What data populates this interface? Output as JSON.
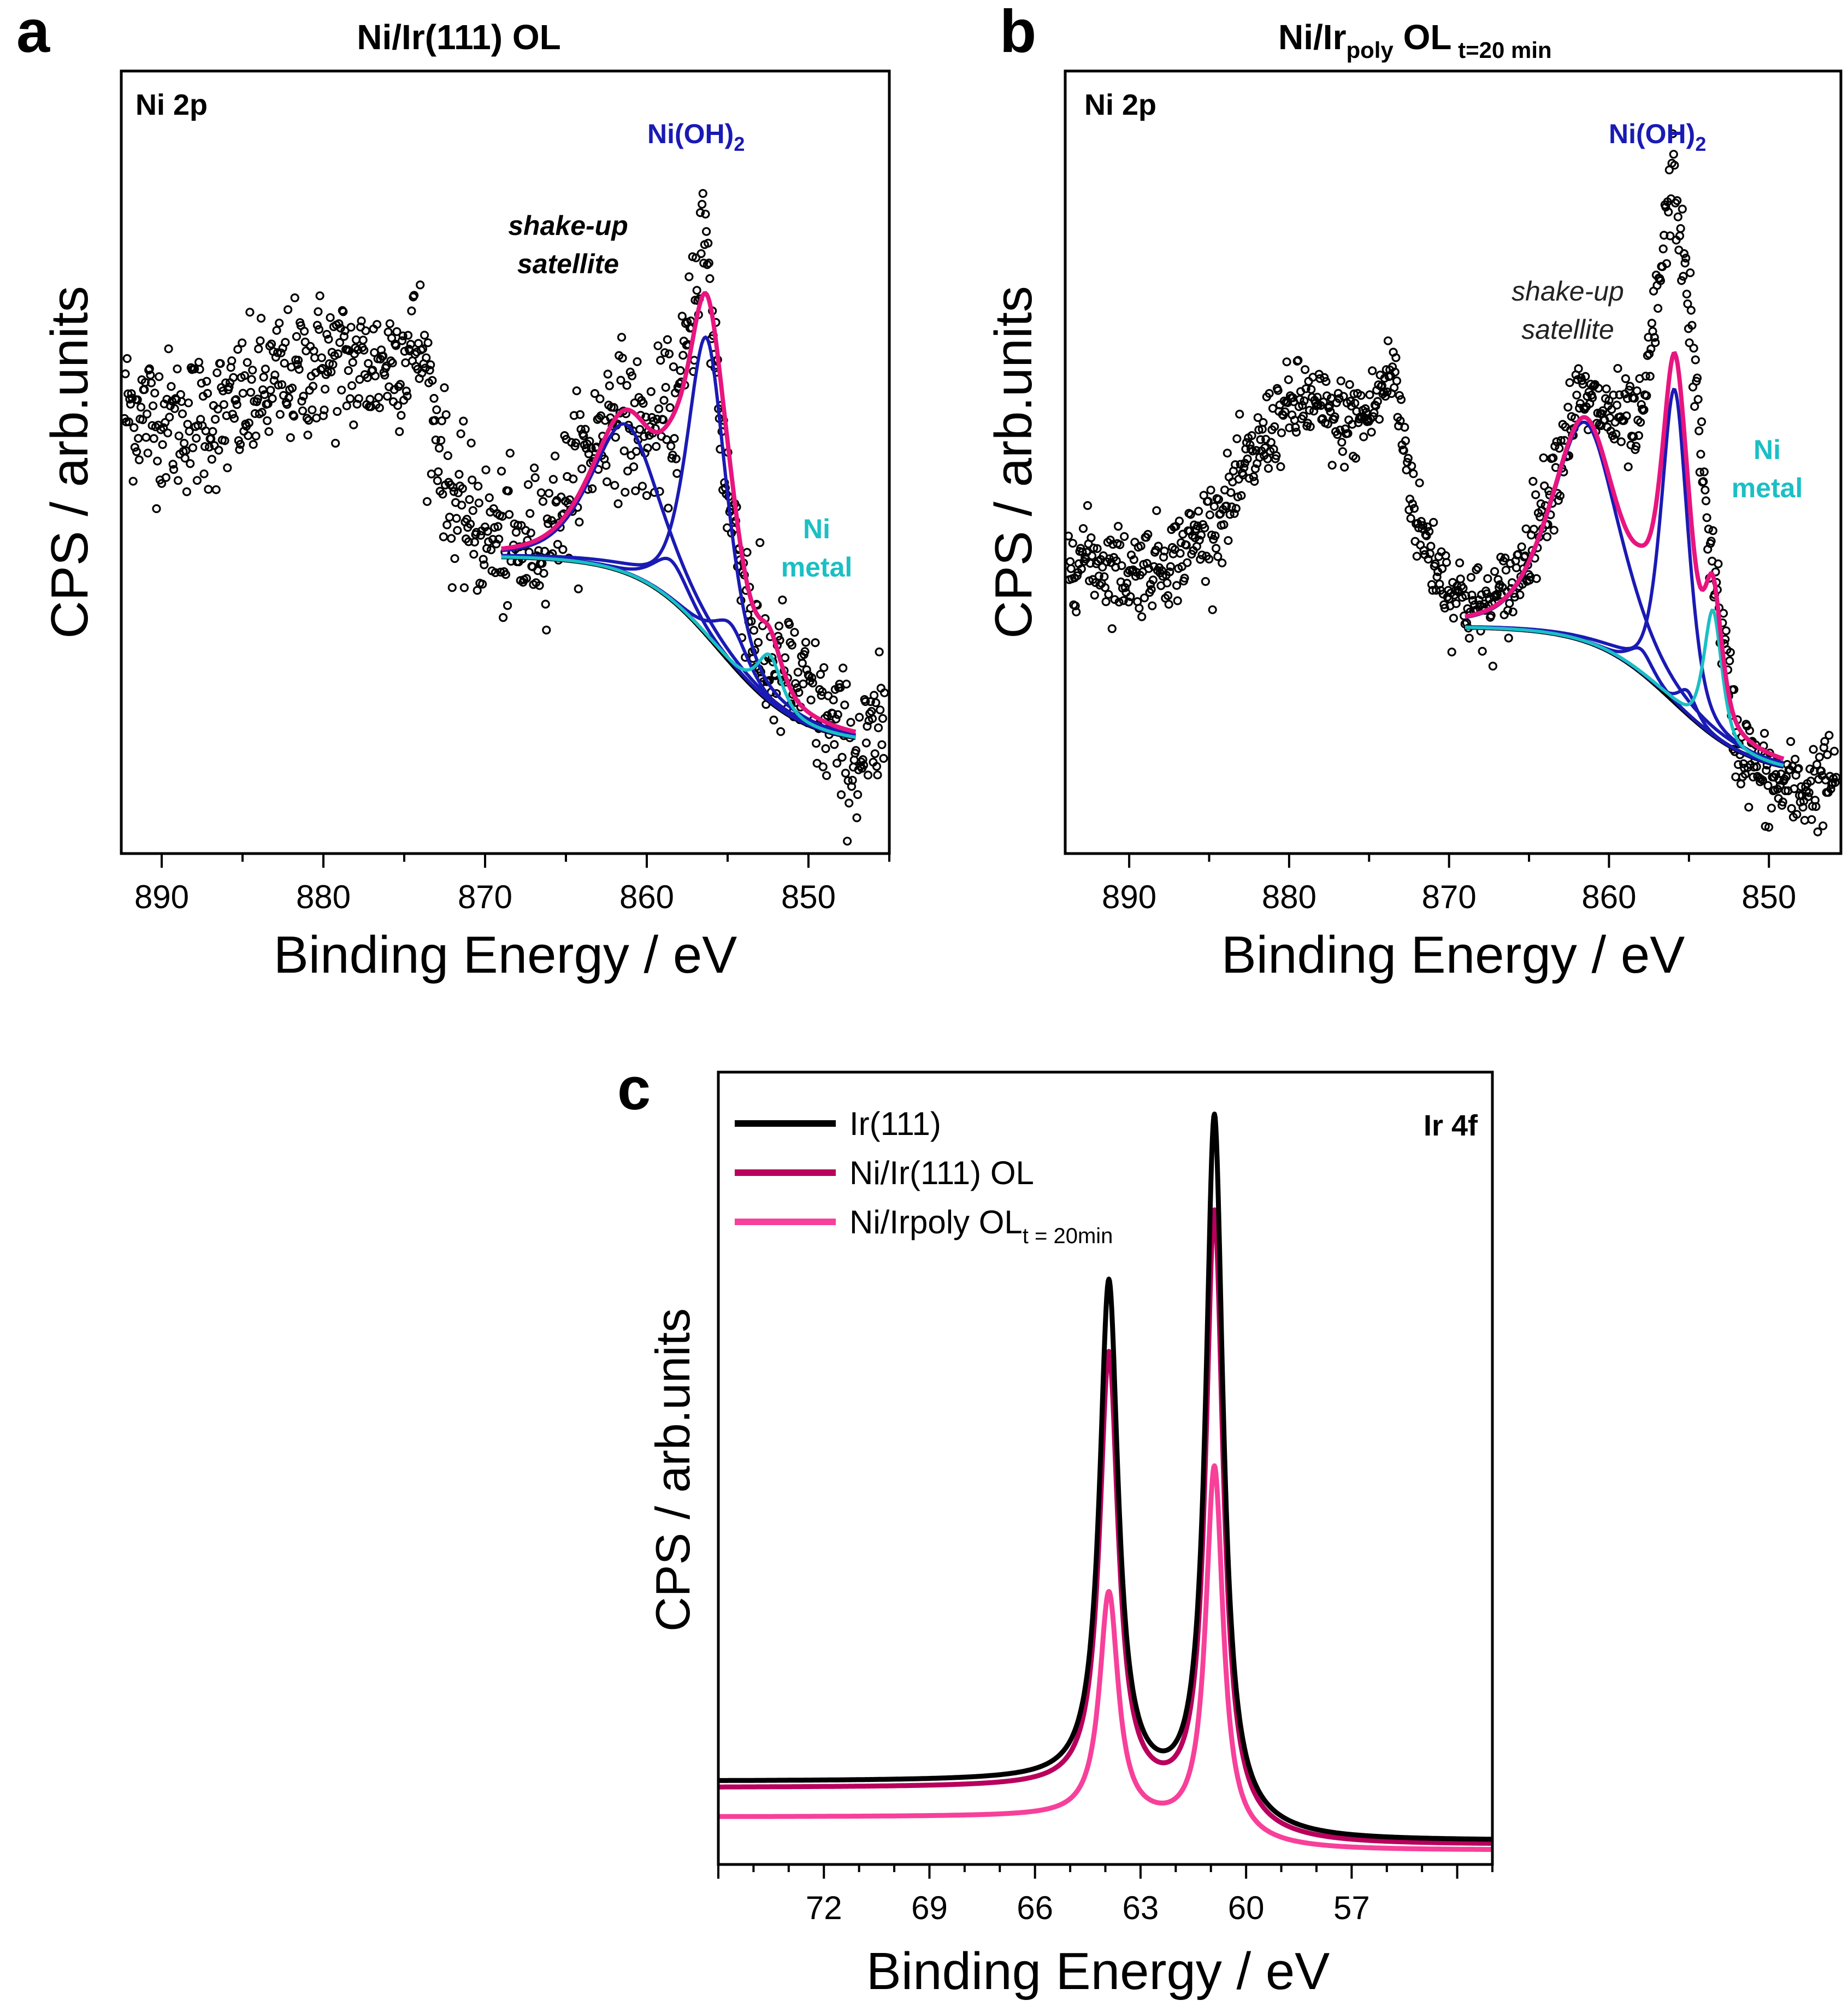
{
  "colors": {
    "data_points": "#000000",
    "background_curve": "#000000",
    "nioh2_component": "#1a1ab4",
    "ni_metal_component": "#1bbfc4",
    "envelope": "#e8157f",
    "ir111": "#000000",
    "ni_ir111": "#b8005c",
    "ni_irpoly": "#f7409a"
  },
  "chart_data": [
    {
      "panel": "a",
      "type": "scatter",
      "title": "Ni/Ir(111) OL",
      "region_label": "Ni 2p",
      "xlabel": "Binding Energy / eV",
      "ylabel": "CPS / arb.units",
      "xlim": [
        892.5,
        845.0
      ],
      "ylim": [
        0.0,
        1.0
      ],
      "xticks": [
        890,
        880,
        870,
        860,
        850
      ],
      "xtick_labels": [
        "890",
        "880",
        "870",
        "860",
        "850"
      ],
      "annotations": {
        "satellite_line1": "shake-up",
        "satellite_line2": "satellite",
        "nioh2_main": "Ni(OH)",
        "nioh2_sub": "2",
        "ni_metal_line1": "Ni",
        "ni_metal_line2": "metal"
      },
      "fit_range": [
        869,
        847
      ],
      "background": {
        "start_level": 0.38,
        "end_level": 0.14,
        "step_center": 855.5
      },
      "components": [
        {
          "name": "Ni(OH)2 main",
          "center": 856.3,
          "height": 0.38,
          "width": 1.3
        },
        {
          "name": "Ni(OH)2 satellite",
          "center": 861.3,
          "height": 0.19,
          "width": 2.3
        },
        {
          "name": "Ni(OH)2 minor 1",
          "center": 858.5,
          "height": 0.05,
          "width": 1.2
        },
        {
          "name": "Ni(OH)2 minor 2",
          "center": 854.8,
          "height": 0.05,
          "width": 1.1
        },
        {
          "name": "Ni metal",
          "center": 852.4,
          "height": 0.06,
          "width": 0.8
        }
      ],
      "raw_points_profile": {
        "x": [
          892,
          889,
          886,
          883,
          880,
          877,
          874,
          872,
          870,
          868,
          866,
          864,
          862,
          860,
          858,
          856.5,
          855,
          853,
          851,
          849,
          847,
          845.5
        ],
        "y": [
          0.57,
          0.55,
          0.56,
          0.6,
          0.63,
          0.62,
          0.65,
          0.44,
          0.41,
          0.38,
          0.42,
          0.5,
          0.57,
          0.53,
          0.57,
          0.8,
          0.46,
          0.25,
          0.22,
          0.17,
          0.12,
          0.15
        ]
      }
    },
    {
      "panel": "b",
      "type": "scatter",
      "title_main": "Ni/Ir",
      "title_sub1": "poly",
      "title_mid": " OL",
      "title_sub2": " t=20 min",
      "region_label": "Ni 2p",
      "xlabel": "Binding Energy / eV",
      "ylabel": "CPS / arb.units",
      "xlim": [
        894.0,
        845.5
      ],
      "ylim": [
        0.0,
        1.0
      ],
      "xticks": [
        890,
        880,
        870,
        860,
        850
      ],
      "xtick_labels": [
        "890",
        "880",
        "870",
        "860",
        "850"
      ],
      "annotations": {
        "satellite_line1": "shake-up",
        "satellite_line2": "satellite",
        "nioh2_main": "Ni(OH)",
        "nioh2_sub": "2",
        "ni_metal_line1": "Ni",
        "ni_metal_line2": "metal"
      },
      "fit_range": [
        869,
        849
      ],
      "background": {
        "start_level": 0.29,
        "end_level": 0.1,
        "step_center": 856.0
      },
      "components": [
        {
          "name": "Ni(OH)2 main",
          "center": 855.9,
          "height": 0.4,
          "width": 0.9
        },
        {
          "name": "Ni(OH)2 satellite",
          "center": 861.5,
          "height": 0.28,
          "width": 2.3
        },
        {
          "name": "Ni(OH)2 minor 1",
          "center": 858.0,
          "height": 0.03,
          "width": 0.8
        },
        {
          "name": "Ni(OH)2 minor 2",
          "center": 855.1,
          "height": 0.03,
          "width": 0.6
        },
        {
          "name": "Ni metal",
          "center": 853.5,
          "height": 0.16,
          "width": 0.6
        }
      ],
      "raw_points_profile": {
        "x": [
          893,
          890,
          887,
          884,
          881,
          879,
          877,
          875,
          873.5,
          872,
          870,
          868,
          866,
          864,
          862,
          860,
          858,
          856,
          855,
          854,
          852,
          850,
          848,
          846
        ],
        "y": [
          0.38,
          0.36,
          0.38,
          0.44,
          0.55,
          0.58,
          0.55,
          0.56,
          0.62,
          0.42,
          0.34,
          0.31,
          0.34,
          0.45,
          0.58,
          0.56,
          0.54,
          0.87,
          0.7,
          0.45,
          0.14,
          0.09,
          0.08,
          0.1
        ]
      }
    },
    {
      "panel": "c",
      "type": "line",
      "region_label": "Ir 4f",
      "xlabel": "Binding Energy / eV",
      "ylabel": "CPS / arb.units",
      "xlim": [
        75.0,
        53.0
      ],
      "ylim": [
        0.0,
        1.0
      ],
      "xticks": [
        72,
        69,
        66,
        63,
        60,
        57
      ],
      "xtick_labels": [
        "72",
        "69",
        "66",
        "63",
        "60",
        "57"
      ],
      "peaks": {
        "ir_4f7_2": 60.9,
        "ir_4f5_2": 63.9
      },
      "series": [
        {
          "name": "Ir(111)",
          "legend_label": "Ir(111)",
          "legend_sub": "",
          "bg_high": 0.105,
          "bg_low": 0.03,
          "peak_4f7": 0.94,
          "peak_4f5": 0.73
        },
        {
          "name": "Ni/Ir(111) OL",
          "legend_label": "Ni/Ir(111) OL",
          "legend_sub": "",
          "bg_high": 0.097,
          "bg_low": 0.025,
          "peak_4f7": 0.82,
          "peak_4f5": 0.64
        },
        {
          "name": "Ni/Irpoly OL t = 20min",
          "legend_label": "Ni/Irpoly OL",
          "legend_sub": "t = 20min",
          "bg_high": 0.06,
          "bg_low": 0.018,
          "peak_4f7": 0.5,
          "peak_4f5": 0.34
        }
      ]
    }
  ]
}
